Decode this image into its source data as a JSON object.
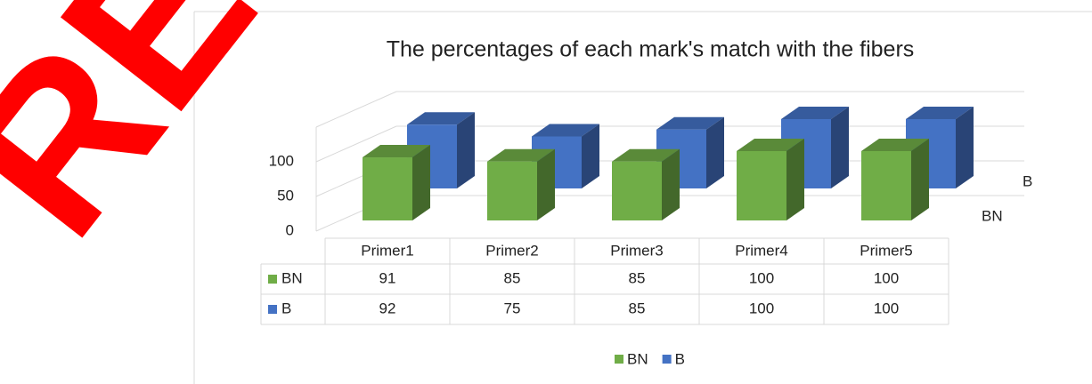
{
  "watermark": "RE",
  "chart_data": {
    "type": "bar3d",
    "title": "The percentages of each mark's match with the fibers",
    "categories": [
      "Primer1",
      "Primer2",
      "Primer3",
      "Primer4",
      "Primer5"
    ],
    "series": [
      {
        "name": "BN",
        "color": "#70ad47",
        "values": [
          91,
          85,
          85,
          100,
          100
        ]
      },
      {
        "name": "B",
        "color": "#4472c4",
        "values": [
          92,
          75,
          85,
          100,
          100
        ]
      }
    ],
    "ylim": [
      0,
      150
    ],
    "yticks": [
      0,
      50,
      100
    ],
    "grid": true,
    "data_table": true,
    "legend": "bottom"
  }
}
